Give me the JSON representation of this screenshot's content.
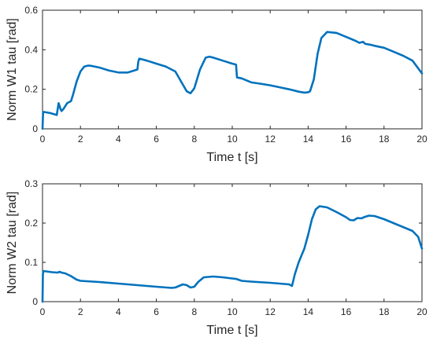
{
  "chart_data": [
    {
      "type": "line",
      "title": "",
      "xlabel": "Time t [s]",
      "ylabel": "Norm W1 tau [rad]",
      "xlim": [
        0,
        20
      ],
      "ylim": [
        0,
        0.6
      ],
      "xticks": [
        "0",
        "2",
        "4",
        "6",
        "8",
        "10",
        "12",
        "14",
        "16",
        "18",
        "20"
      ],
      "yticks": [
        "0",
        "0.2",
        "0.4",
        "0.6"
      ],
      "grid": false,
      "color": "#0072BD",
      "series": [
        {
          "x": [
            0,
            0.03,
            0.1,
            0.4,
            0.75,
            0.8,
            0.85,
            0.95,
            1.0,
            1.1,
            1.3,
            1.5,
            1.6,
            1.8,
            2.0,
            2.2,
            2.4,
            2.6,
            3.0,
            3.5,
            4.0,
            4.5,
            5.0,
            5.05,
            5.1,
            5.3,
            5.5,
            6.0,
            6.5,
            7.0,
            7.3,
            7.6,
            7.8,
            8.0,
            8.3,
            8.6,
            8.8,
            9.0,
            9.5,
            10.0,
            10.2,
            10.25,
            10.5,
            11.0,
            11.5,
            12.0,
            12.5,
            13.0,
            13.5,
            13.8,
            14.0,
            14.1,
            14.3,
            14.5,
            14.7,
            15.0,
            15.5,
            16.0,
            16.5,
            16.7,
            16.9,
            17.0,
            17.3,
            17.5,
            18.0,
            18.5,
            19.0,
            19.5,
            20.0
          ],
          "y": [
            0.0,
            0.085,
            0.085,
            0.08,
            0.07,
            0.1,
            0.13,
            0.1,
            0.09,
            0.1,
            0.13,
            0.14,
            0.17,
            0.24,
            0.29,
            0.315,
            0.32,
            0.318,
            0.31,
            0.295,
            0.285,
            0.285,
            0.3,
            0.34,
            0.355,
            0.35,
            0.345,
            0.33,
            0.315,
            0.29,
            0.24,
            0.19,
            0.18,
            0.205,
            0.3,
            0.36,
            0.365,
            0.36,
            0.345,
            0.33,
            0.325,
            0.26,
            0.255,
            0.235,
            0.228,
            0.22,
            0.21,
            0.2,
            0.188,
            0.183,
            0.185,
            0.19,
            0.25,
            0.38,
            0.46,
            0.49,
            0.485,
            0.465,
            0.445,
            0.435,
            0.44,
            0.43,
            0.425,
            0.42,
            0.41,
            0.39,
            0.37,
            0.345,
            0.28
          ]
        }
      ]
    },
    {
      "type": "line",
      "title": "",
      "xlabel": "Time t [s]",
      "ylabel": "Norm W2 tau [rad]",
      "xlim": [
        0,
        20
      ],
      "ylim": [
        0,
        0.3
      ],
      "xticks": [
        "0",
        "2",
        "4",
        "6",
        "8",
        "10",
        "12",
        "14",
        "16",
        "18",
        "20"
      ],
      "yticks": [
        "0",
        "0.1",
        "0.2",
        "0.3"
      ],
      "grid": false,
      "color": "#0072BD",
      "series": [
        {
          "x": [
            0,
            0.02,
            0.05,
            0.2,
            0.5,
            0.8,
            0.9,
            1.0,
            1.2,
            1.5,
            1.8,
            2.0,
            3.0,
            4.0,
            5.0,
            6.0,
            6.8,
            7.0,
            7.2,
            7.4,
            7.6,
            7.8,
            8.0,
            8.2,
            8.5,
            9.0,
            9.5,
            10.0,
            10.2,
            10.5,
            11.0,
            12.0,
            12.5,
            13.0,
            13.15,
            13.3,
            13.5,
            13.8,
            14.0,
            14.2,
            14.4,
            14.6,
            15.0,
            15.5,
            16.0,
            16.2,
            16.4,
            16.6,
            16.8,
            17.0,
            17.2,
            17.5,
            18.0,
            18.5,
            19.0,
            19.5,
            19.8,
            20.0
          ],
          "y": [
            0.0,
            0.07,
            0.078,
            0.077,
            0.075,
            0.074,
            0.076,
            0.074,
            0.072,
            0.065,
            0.056,
            0.053,
            0.05,
            0.046,
            0.042,
            0.038,
            0.035,
            0.036,
            0.04,
            0.044,
            0.042,
            0.036,
            0.038,
            0.05,
            0.062,
            0.064,
            0.062,
            0.059,
            0.058,
            0.053,
            0.051,
            0.048,
            0.046,
            0.044,
            0.04,
            0.07,
            0.1,
            0.135,
            0.17,
            0.21,
            0.235,
            0.243,
            0.24,
            0.228,
            0.215,
            0.208,
            0.207,
            0.213,
            0.212,
            0.216,
            0.219,
            0.218,
            0.21,
            0.2,
            0.19,
            0.18,
            0.165,
            0.135
          ]
        }
      ]
    }
  ]
}
